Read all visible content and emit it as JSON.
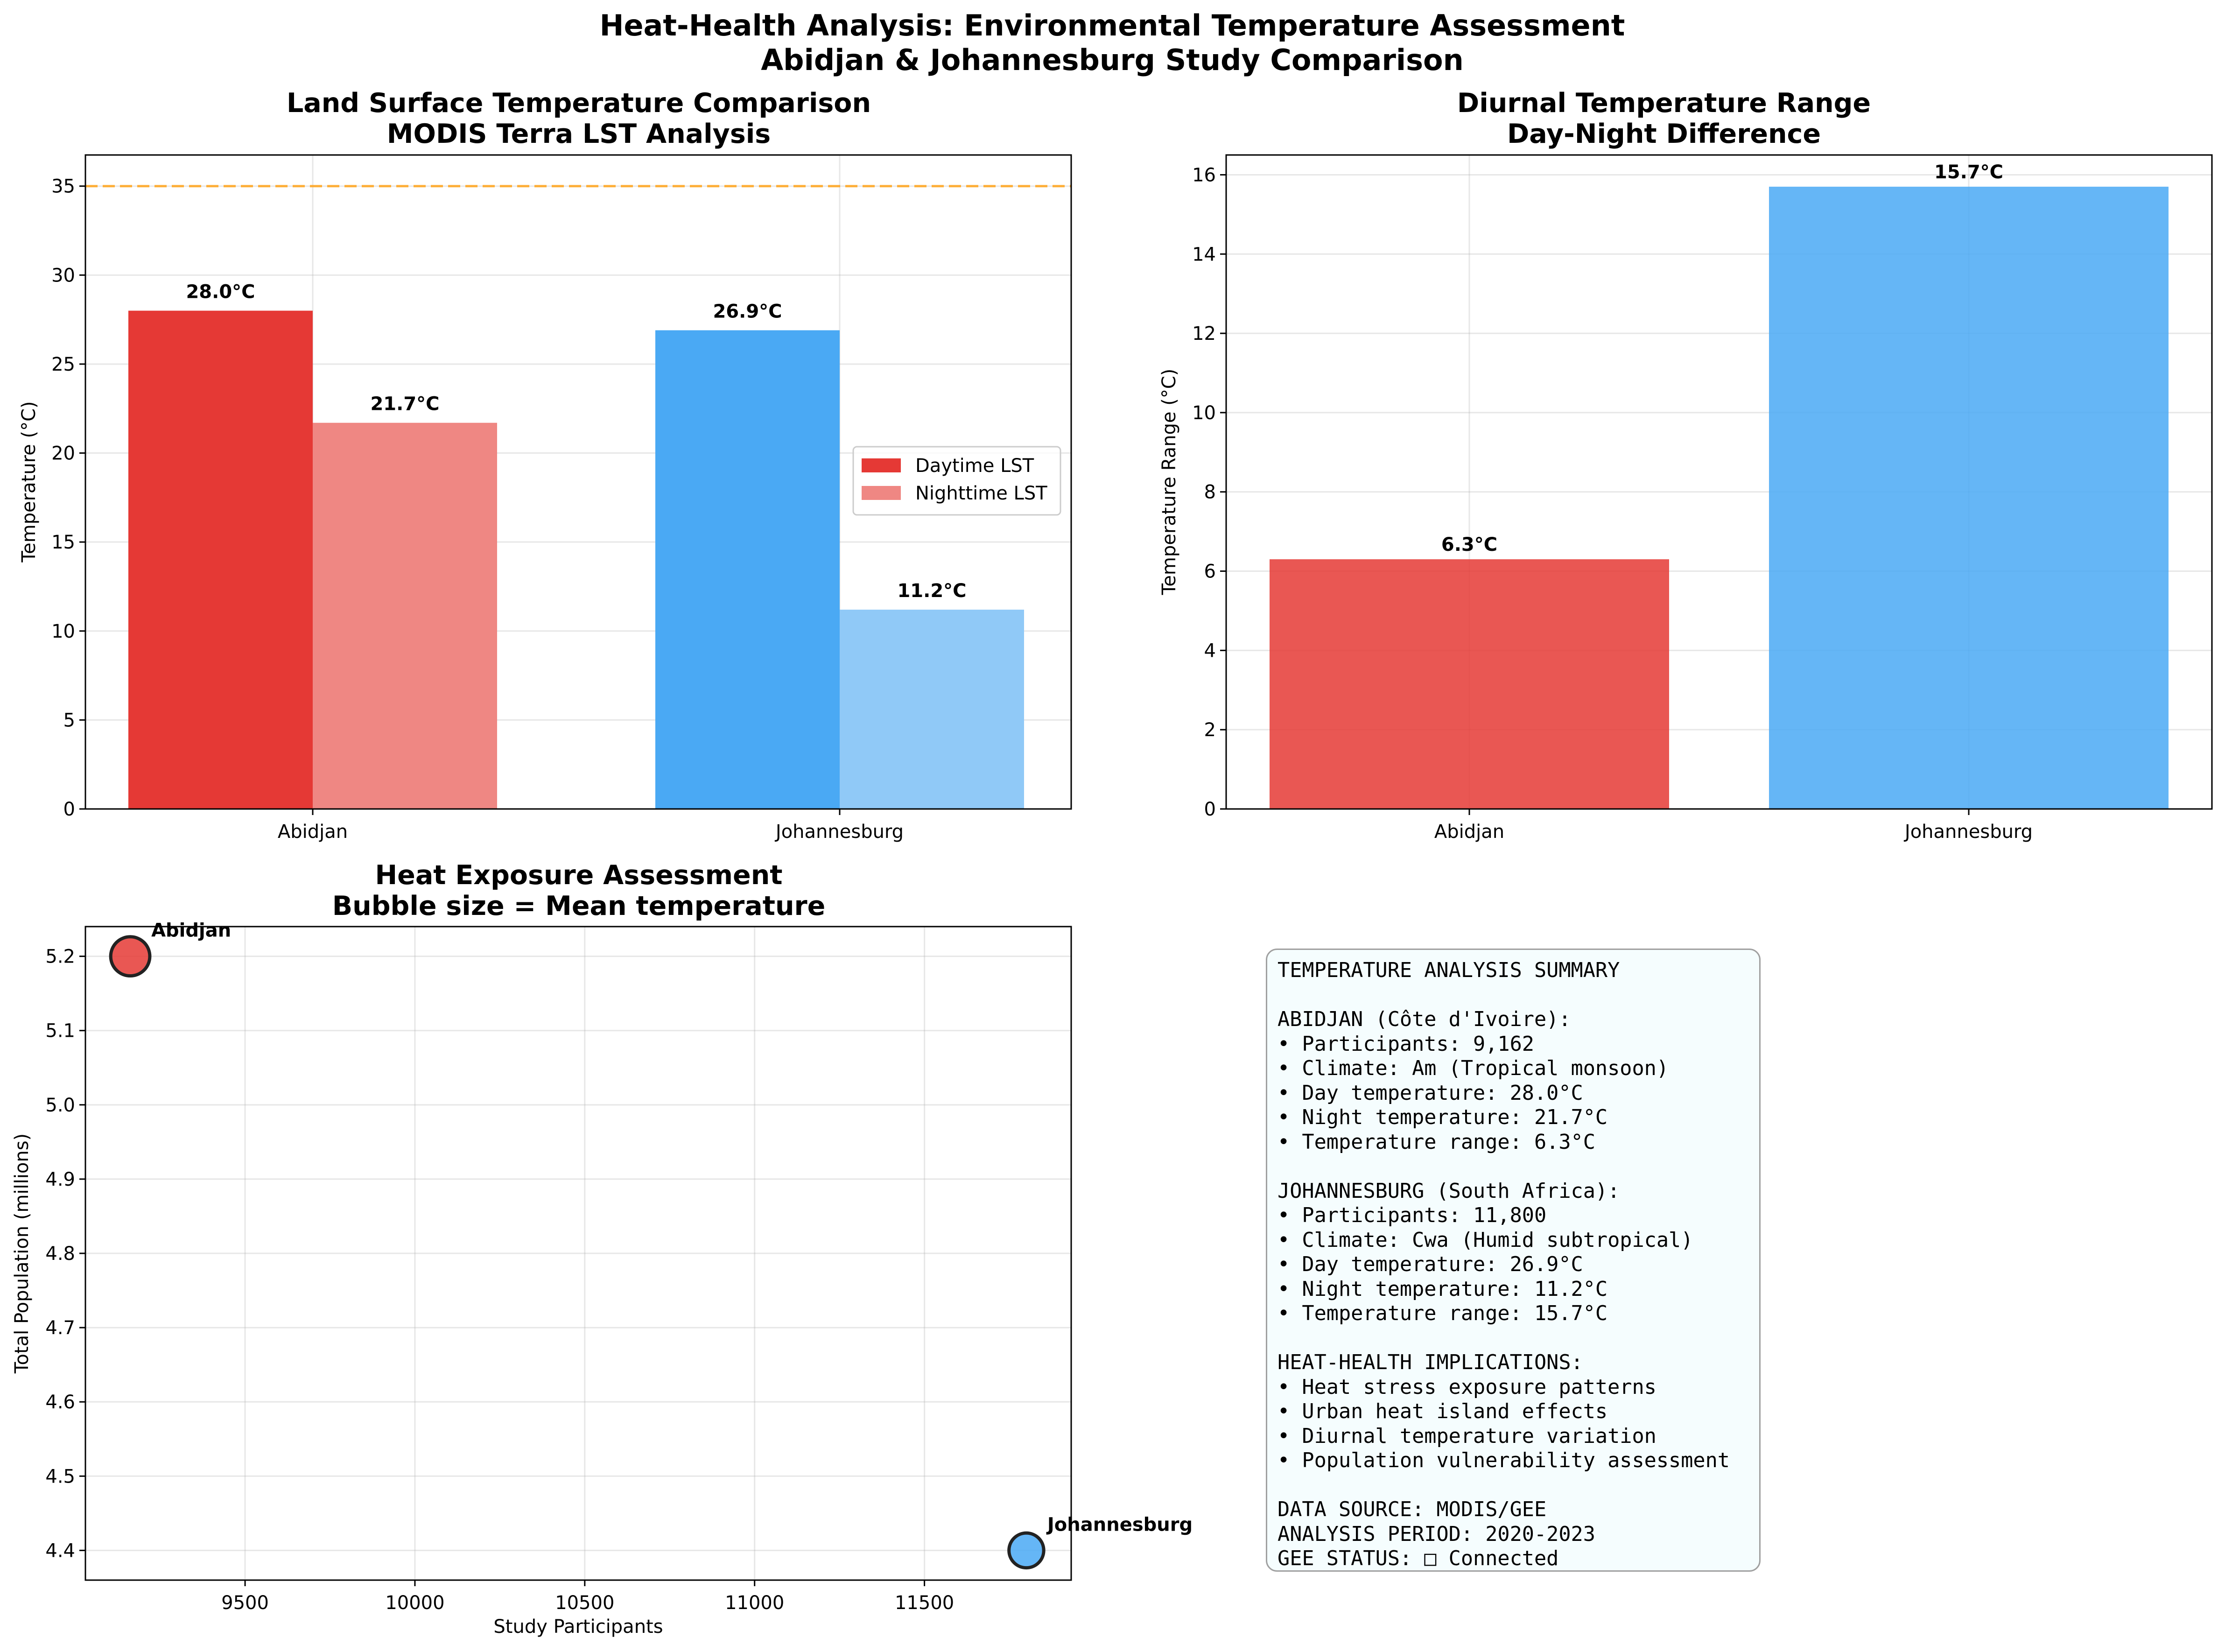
{
  "figure": {
    "title_line1": "Heat-Health Analysis: Environmental Temperature Assessment",
    "title_line2": "Abidjan & Johannesburg Study Comparison"
  },
  "colors": {
    "abidjan_day": "#e53935",
    "abidjan_night": "#ef8783",
    "johannesburg_day": "#4aa9f4",
    "johannesburg_night": "#90c9f7",
    "threshold": "#ffa726"
  },
  "chart_data": [
    {
      "type": "bar",
      "title_line1": "Land Surface Temperature Comparison",
      "title_line2": "MODIS Terra LST Analysis",
      "ylabel": "Temperature (°C)",
      "categories": [
        "Abidjan",
        "Johannesburg"
      ],
      "series": [
        {
          "name": "Daytime LST",
          "values": [
            28.0,
            26.9
          ],
          "labels": [
            "28.0°C",
            "26.9°C"
          ]
        },
        {
          "name": "Nighttime LST",
          "values": [
            21.7,
            11.2
          ],
          "labels": [
            "21.7°C",
            "11.2°C"
          ]
        }
      ],
      "reference_line": 35,
      "ylim": [
        0,
        36.75
      ],
      "yticks": [
        "0",
        "5",
        "10",
        "15",
        "20",
        "25",
        "30",
        "35"
      ],
      "grid": true,
      "legend_placement": "center-right"
    },
    {
      "type": "bar",
      "title_line1": "Diurnal Temperature Range",
      "title_line2": "Day-Night Difference",
      "ylabel": "Temperature Range (°C)",
      "categories": [
        "Abidjan",
        "Johannesburg"
      ],
      "values": [
        6.3,
        15.7
      ],
      "labels": [
        "6.3°C",
        "15.7°C"
      ],
      "ylim": [
        0,
        16.5
      ],
      "yticks": [
        "0",
        "2",
        "4",
        "6",
        "8",
        "10",
        "12",
        "14",
        "16"
      ],
      "grid": true
    },
    {
      "type": "scatter",
      "title_line1": "Heat Exposure Assessment",
      "title_line2": "Bubble size = Mean temperature",
      "xlabel": "Study Participants",
      "ylabel": "Total Population (millions)",
      "points": [
        {
          "label": "Abidjan",
          "x": 9162,
          "y": 5.2,
          "mean_temperature": 24.85
        },
        {
          "label": "Johannesburg",
          "x": 11800,
          "y": 4.4,
          "mean_temperature": 19.05
        }
      ],
      "xlim": [
        9030,
        11932
      ],
      "ylim": [
        4.36,
        5.24
      ],
      "xticks": [
        "9500",
        "10000",
        "10500",
        "11000",
        "11500"
      ],
      "yticks": [
        "4.4",
        "4.5",
        "4.6",
        "4.7",
        "4.8",
        "4.9",
        "5.0",
        "5.1",
        "5.2"
      ],
      "grid": true
    }
  ],
  "summary": {
    "lines": [
      "TEMPERATURE ANALYSIS SUMMARY",
      "",
      "ABIDJAN (Côte d'Ivoire):",
      "• Participants: 9,162",
      "• Climate: Am (Tropical monsoon)",
      "• Day temperature: 28.0°C",
      "• Night temperature: 21.7°C",
      "• Temperature range: 6.3°C",
      "",
      "JOHANNESBURG (South Africa):",
      "• Participants: 11,800",
      "• Climate: Cwa (Humid subtropical)",
      "• Day temperature: 26.9°C",
      "• Night temperature: 11.2°C",
      "• Temperature range: 15.7°C",
      "",
      "HEAT-HEALTH IMPLICATIONS:",
      "• Heat stress exposure patterns",
      "• Urban heat island effects",
      "• Diurnal temperature variation",
      "• Population vulnerability assessment",
      "",
      "DATA SOURCE: MODIS/GEE",
      "ANALYSIS PERIOD: 2020-2023",
      "GEE STATUS: □ Connected"
    ]
  }
}
